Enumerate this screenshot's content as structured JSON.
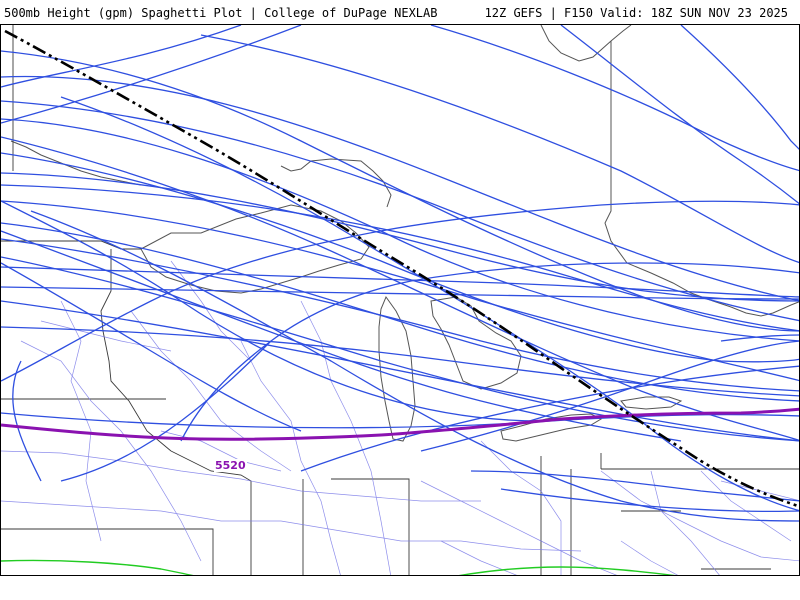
{
  "header": {
    "title": "500mb Height (gpm) Spaghetti Plot | College of DuPage NEXLAB",
    "run_info": "12Z GEFS | F150 Valid: 18Z SUN NOV 23 2025"
  },
  "contours": {
    "label": "5520"
  },
  "colors": {
    "ensemble_member": "#2f4fe0",
    "mean": "#000000",
    "contour_5520": "#8a12b0",
    "contour_green": "#22cc22",
    "state_borders": "#3a3a3a",
    "roads": "#7a7ae8",
    "background": "#ffffff"
  }
}
